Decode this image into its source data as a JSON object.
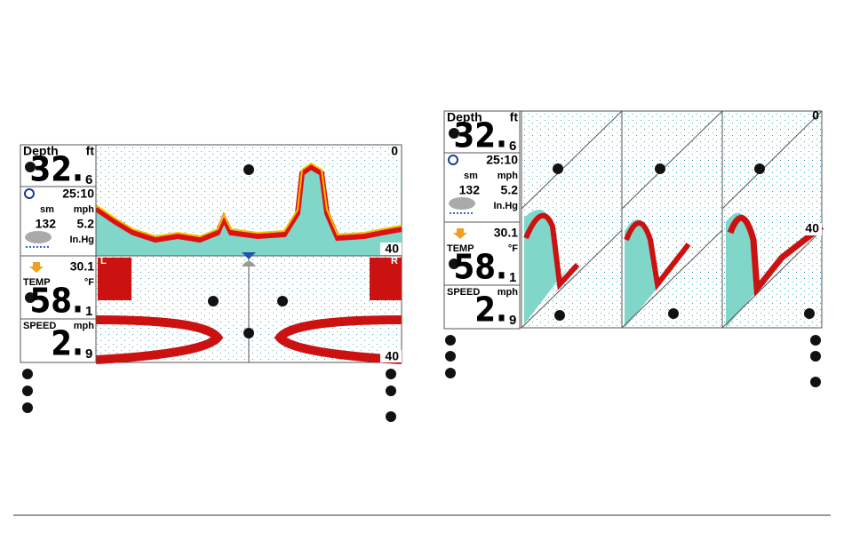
{
  "left_screen": {
    "depth_label": "Depth",
    "depth_unit": "ft",
    "depth_whole": "32.",
    "depth_decimal": "6",
    "time": "25:10",
    "distance_unit": "sm",
    "speed_unit": "mph",
    "distance": "132",
    "speed": "5.2",
    "pressure_unit": "In.Hg",
    "pressure": "30.1",
    "temp_label": "TEMP",
    "temp_unit": "°F",
    "temp_whole": "58.",
    "temp_decimal": "1",
    "speed_label": "SPEED",
    "speed_label_unit": "mph",
    "speed_whole": "2.",
    "speed_decimal": "9",
    "sonar_top": "0",
    "sonar_range": "40",
    "side_left": "L",
    "side_right": "R",
    "side_range": "40"
  },
  "right_screen": {
    "depth_label": "Depth",
    "depth_unit": "ft",
    "depth_whole": "32.",
    "depth_decimal": "6",
    "time": "25:10",
    "distance_unit": "sm",
    "speed_unit": "mph",
    "distance": "132",
    "speed": "5.2",
    "pressure_unit": "In.Hg",
    "pressure": "30.1",
    "temp_label": "TEMP",
    "temp_unit": "°F",
    "temp_whole": "58.",
    "temp_decimal": "1",
    "speed_label": "SPEED",
    "speed_label_unit": "mph",
    "speed_whole": "2.",
    "speed_decimal": "9",
    "sonar_top": "0",
    "sonar_range": "40"
  }
}
